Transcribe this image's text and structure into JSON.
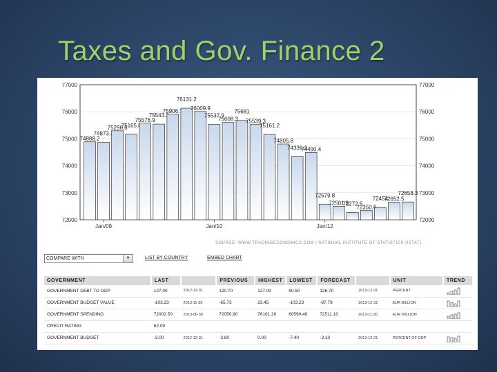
{
  "slide": {
    "title": "Taxes and Gov. Finance 2"
  },
  "chart_data": {
    "type": "bar",
    "values": [
      74888.2,
      74873.3,
      75296.6,
      75165.8,
      75576.9,
      75543.3,
      75906.7,
      76131.2,
      76009.9,
      75537.9,
      75608.3,
      75681,
      75539.3,
      75161.2,
      74805.8,
      74339.3,
      74490.4,
      72579.8,
      72501.8,
      72272.5,
      72350.6,
      72454,
      72652.5,
      72658.3
    ],
    "bar_labels": [
      "74888.2",
      "74873.3",
      "75296.6",
      "75165.8",
      "75576.9",
      "75543.3",
      "75906.7",
      "76131.2",
      "76009.9",
      "75537.9",
      "75608.3",
      "75681",
      "75539.3",
      "75161.2",
      "74805.8",
      "74339.3",
      "74490.4",
      "72579.8",
      "72501.8",
      "72272.5",
      "72350.6",
      "72454",
      "72652.5",
      "72658.3"
    ],
    "x_ticks": [
      "Jan/08",
      "Jan/10",
      "Jan/12"
    ],
    "y_ticks": [
      "77000",
      "76000",
      "75000",
      "74000",
      "73000",
      "72000"
    ],
    "ylim": [
      72000,
      77000
    ],
    "bar_color_top": "#c9d8ec",
    "bar_color_bottom": "#ffffff",
    "bar_stroke": "#333333"
  },
  "source": {
    "text": "SOURCE:  WWW.TRADINGECONOMICS.COM  |  NATIONAL INSTITUTE OF STATISTICS (ISTAT)"
  },
  "toolbar": {
    "compare_label": "COMPARE WITH",
    "list_by_country": "LIST BY COUNTRY",
    "embed_chart": "EMBED CHART"
  },
  "table": {
    "headers": [
      "GOVERNMENT",
      "LAST",
      "",
      "PREVIOUS",
      "HIGHEST",
      "LOWEST",
      "FORECAST",
      "",
      "UNIT",
      "TREND"
    ],
    "rows": [
      [
        "GOVERNMENT DEBT TO GDP",
        "127.00",
        "2012-12-31",
        "120.70",
        "127.00",
        "90.50",
        "126.70",
        "2013-12-31",
        "PERCENT"
      ],
      [
        "GOVERNMENT BUDGET VALUE",
        "-103.23",
        "2013-11-30",
        "-65.73",
        "23.45",
        "-103.23",
        "-87.79",
        "2013-12-31",
        "EUR BILLION"
      ],
      [
        "GOVERNMENT SPENDING",
        "72002.50",
        "2013-06-30",
        "72050.90",
        "76101.20",
        "60590.40",
        "72511.10",
        "2013-11-30",
        "EUR MILLION"
      ],
      [
        "CREDIT RATING",
        "62.09",
        "",
        "",
        "",
        "",
        "",
        "",
        ""
      ],
      [
        "GOVERNMENT BUDGET",
        "-3.00",
        "2012-12-31",
        "-3.80",
        "0.00",
        "-7.40",
        "-3.10",
        "2013-12-31",
        "PERCENT OF GDP"
      ]
    ]
  }
}
